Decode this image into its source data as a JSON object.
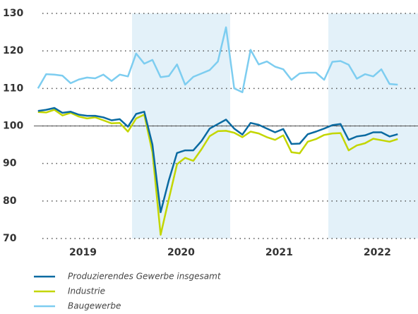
{
  "chart_data": {
    "type": "line",
    "categories": [
      null,
      null,
      null,
      null,
      null,
      null,
      "2019",
      null,
      null,
      null,
      null,
      null,
      null,
      null,
      null,
      null,
      null,
      null,
      "2020",
      null,
      null,
      null,
      null,
      null,
      null,
      null,
      null,
      null,
      null,
      null,
      "2021",
      null,
      null,
      null,
      null,
      null,
      null,
      null,
      null,
      null,
      null,
      null,
      "2022",
      null,
      null
    ],
    "series": [
      {
        "name": "Produzierendes Gewerbe insgesamt",
        "color": "#0a6aa1",
        "values": [
          104,
          104.3,
          104.8,
          103.5,
          103.8,
          103,
          102.7,
          102.7,
          102.3,
          101.5,
          101.8,
          99.8,
          103.2,
          103.8,
          95,
          77,
          85.5,
          92.8,
          93.5,
          93.5,
          96,
          99.3,
          100.5,
          101.7,
          99.3,
          97.7,
          100.8,
          100.3,
          99.3,
          98.3,
          99.2,
          95.2,
          95.3,
          97.8,
          98.5,
          99.3,
          100.2,
          100.5,
          96.3,
          97.2,
          97.5,
          98.3,
          98.3,
          97.2,
          97.8
        ]
      },
      {
        "name": "Industrie",
        "color": "#c3d600",
        "values": [
          103.7,
          103.6,
          104.3,
          102.8,
          103.5,
          102.5,
          102,
          102.3,
          101.5,
          100.7,
          100.8,
          98.5,
          102,
          103,
          93,
          71,
          80.5,
          89.8,
          91.5,
          90.7,
          93.8,
          97.3,
          98.6,
          98.7,
          98.2,
          97,
          98.5,
          98,
          97,
          96.3,
          97.5,
          93,
          92.7,
          95.8,
          96.5,
          97.6,
          98,
          98.1,
          93.5,
          94.8,
          95.4,
          96.6,
          96.2,
          95.8,
          96.5
        ]
      },
      {
        "name": "Baugewerbe",
        "color": "#7dcdf0",
        "values": [
          110,
          113.8,
          113.7,
          113.4,
          111.4,
          112.4,
          112.9,
          112.7,
          113.7,
          112,
          113.7,
          113.2,
          119.3,
          116.6,
          117.6,
          113,
          113.3,
          116.4,
          111,
          113.1,
          114,
          114.9,
          117.2,
          126.3,
          110,
          109,
          120.3,
          116.4,
          117.2,
          115.8,
          115.1,
          112.3,
          114,
          114.2,
          114.2,
          112.3,
          117.1,
          117.3,
          116.3,
          112.6,
          113.8,
          113.2,
          115.1,
          111.2,
          111
        ]
      }
    ],
    "ylim": [
      70,
      130
    ],
    "yticks": [
      70,
      80,
      90,
      100,
      110,
      120,
      130
    ],
    "grid": true,
    "reference_line": 100
  }
}
